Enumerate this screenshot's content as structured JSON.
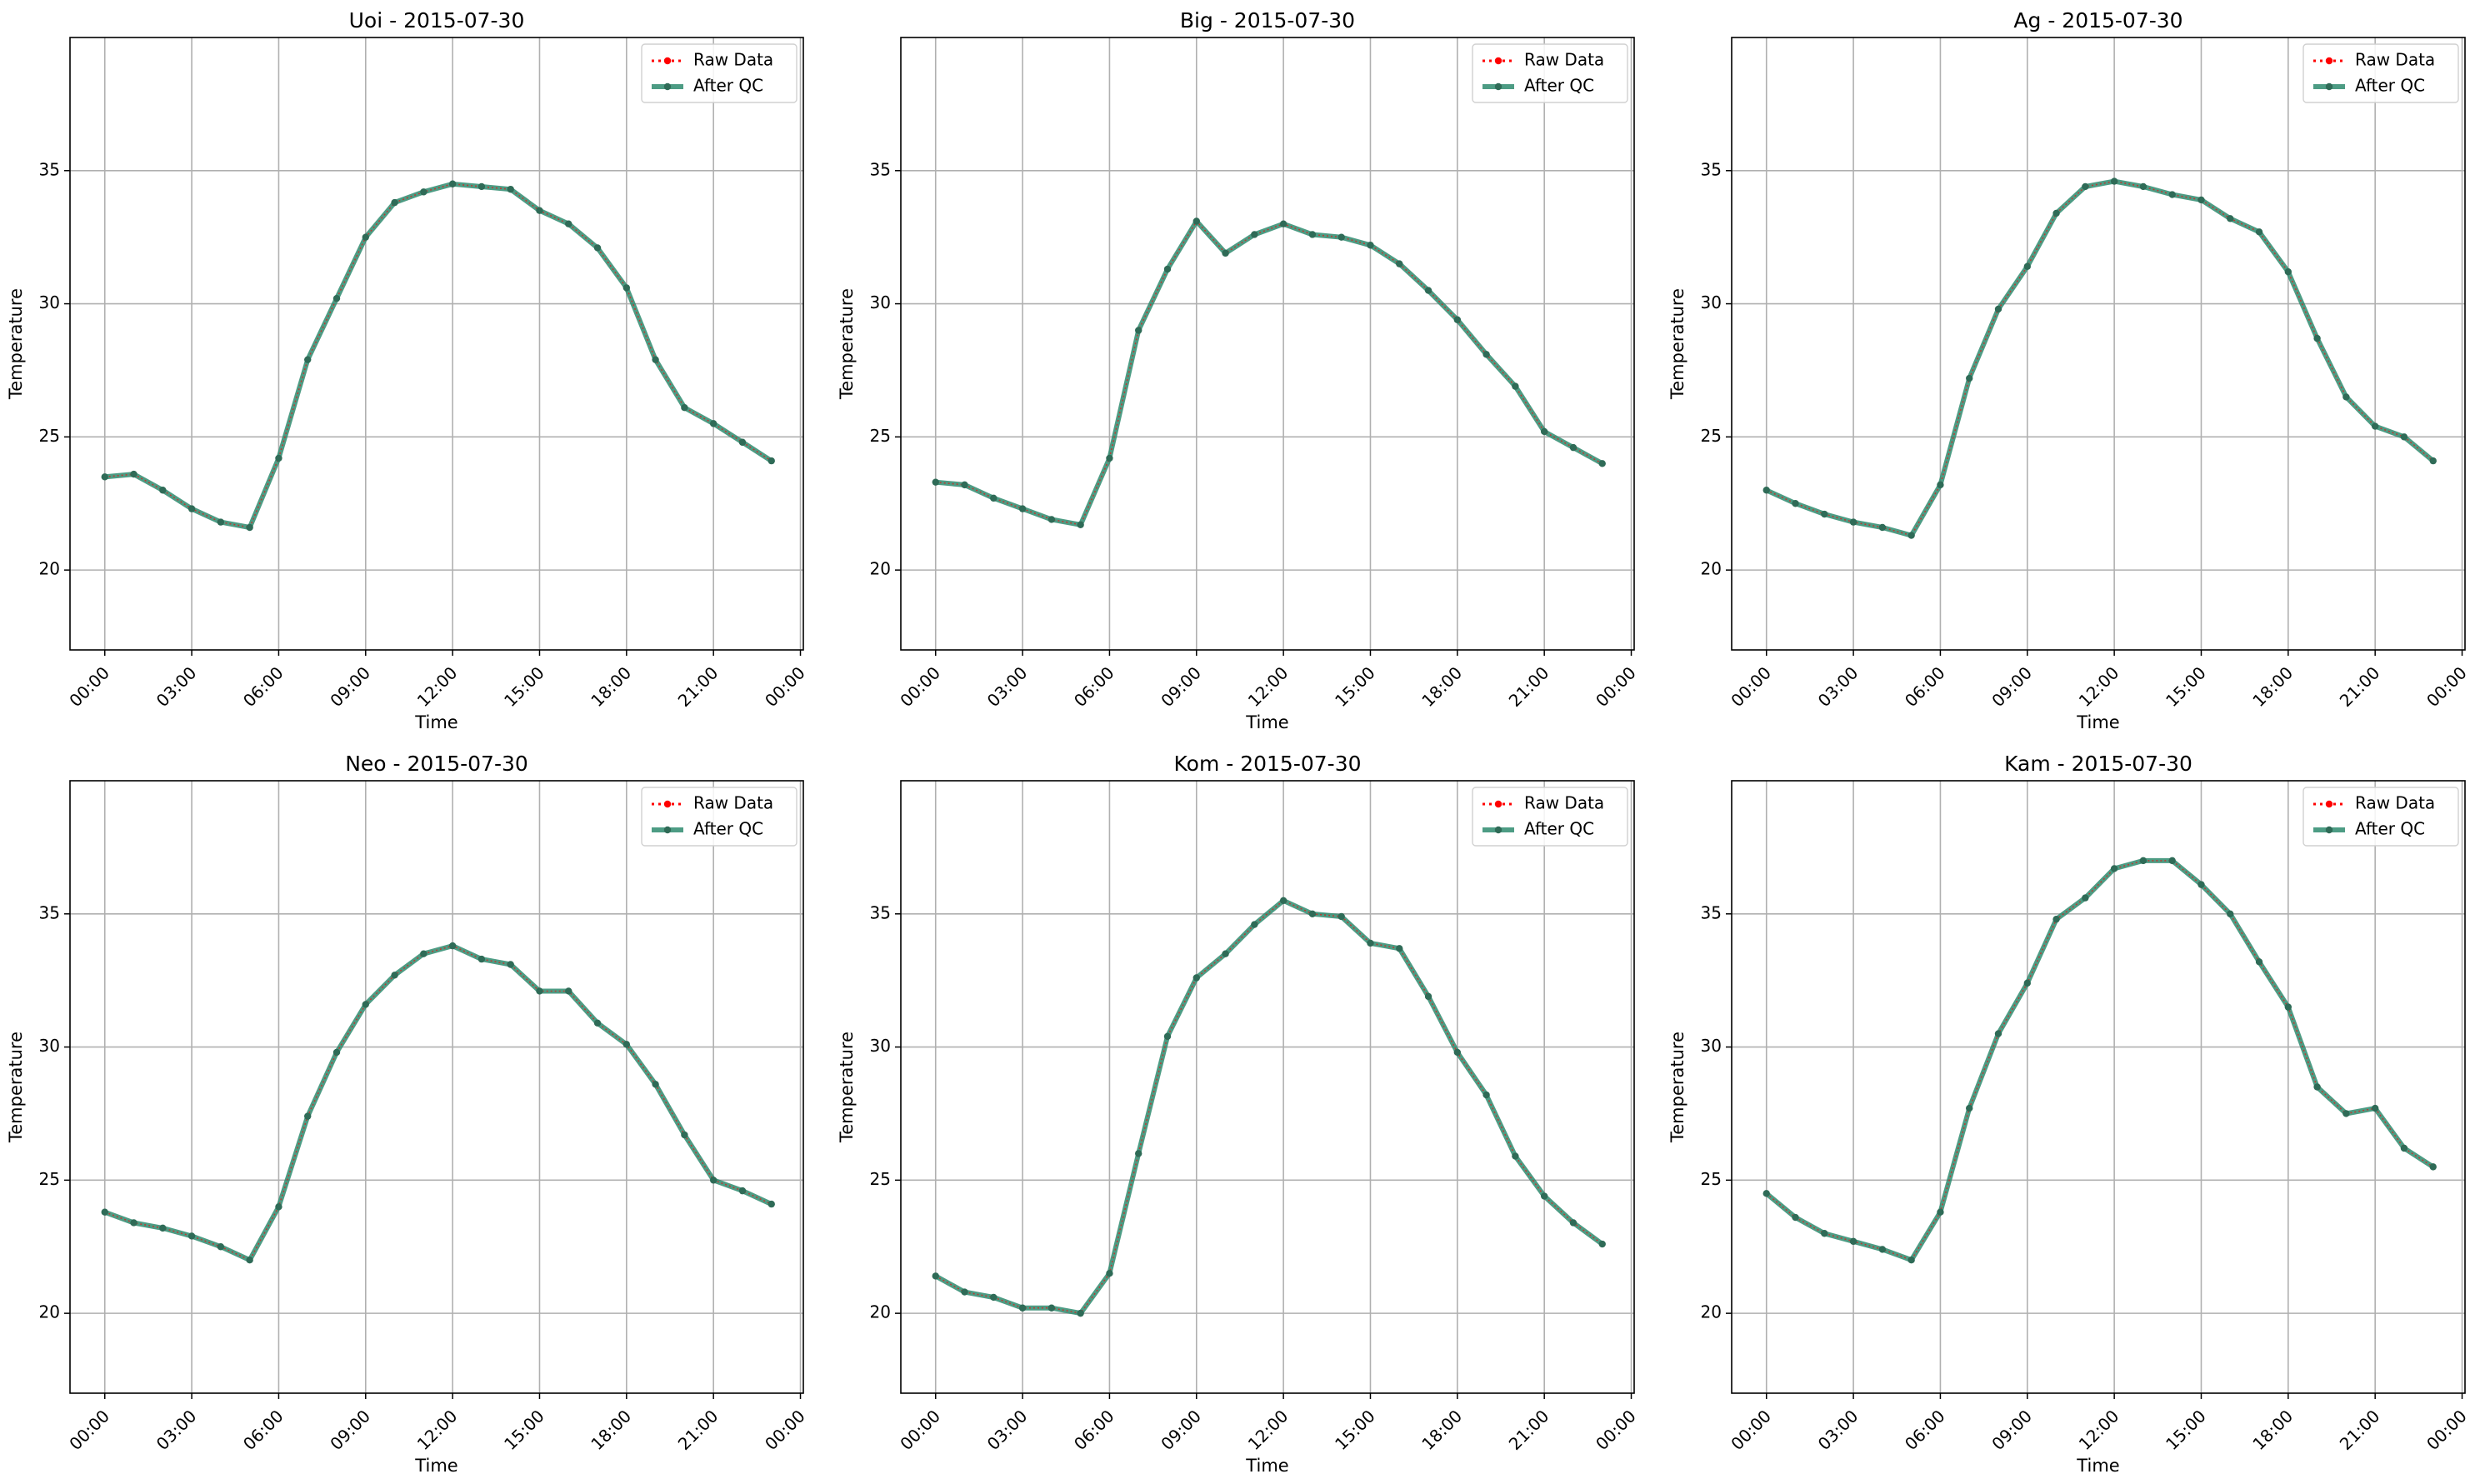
{
  "figure": {
    "background": "#ffffff",
    "raw_color": "#ff0000",
    "qc_color": "#2e8b6f",
    "marker_color": "#2f6b57",
    "grid_color": "#b0b0b0"
  },
  "chart_data": [
    {
      "type": "line",
      "title": "Uoi - 2015-07-30",
      "xlabel": "Time",
      "ylabel": "Temperature",
      "legend": [
        "Raw Data",
        "After QC"
      ],
      "legend_position": "top-right",
      "grid": true,
      "ylim": [
        17,
        40
      ],
      "xlim_hours": [
        -1.2,
        24.1
      ],
      "xticks": [
        "00:00",
        "03:00",
        "06:00",
        "09:00",
        "12:00",
        "15:00",
        "18:00",
        "21:00",
        "00:00"
      ],
      "yticks": [
        20,
        25,
        30,
        35
      ],
      "x_hours": [
        0,
        1,
        2,
        3,
        4,
        5,
        6,
        7,
        8,
        9,
        10,
        11,
        12,
        13,
        14,
        15,
        16,
        17,
        18,
        19,
        20,
        21,
        22,
        23
      ],
      "series": [
        {
          "name": "Raw Data",
          "values": [
            23.5,
            23.6,
            23.0,
            22.3,
            21.8,
            21.6,
            24.2,
            27.9,
            30.2,
            32.5,
            33.8,
            34.2,
            34.5,
            34.4,
            34.3,
            33.5,
            33.0,
            32.1,
            30.6,
            27.9,
            26.1,
            25.5,
            24.8,
            24.1
          ]
        },
        {
          "name": "After QC",
          "values": [
            23.5,
            23.6,
            23.0,
            22.3,
            21.8,
            21.6,
            24.2,
            27.9,
            30.2,
            32.5,
            33.8,
            34.2,
            34.5,
            34.4,
            34.3,
            33.5,
            33.0,
            32.1,
            30.6,
            27.9,
            26.1,
            25.5,
            24.8,
            24.1
          ]
        }
      ]
    },
    {
      "type": "line",
      "title": "Big - 2015-07-30",
      "xlabel": "Time",
      "ylabel": "Temperature",
      "legend": [
        "Raw Data",
        "After QC"
      ],
      "legend_position": "top-right",
      "grid": true,
      "ylim": [
        17,
        40
      ],
      "xlim_hours": [
        -1.2,
        24.1
      ],
      "xticks": [
        "00:00",
        "03:00",
        "06:00",
        "09:00",
        "12:00",
        "15:00",
        "18:00",
        "21:00",
        "00:00"
      ],
      "yticks": [
        20,
        25,
        30,
        35
      ],
      "x_hours": [
        0,
        1,
        2,
        3,
        4,
        5,
        6,
        7,
        8,
        9,
        10,
        11,
        12,
        13,
        14,
        15,
        16,
        17,
        18,
        19,
        20,
        21,
        22,
        23
      ],
      "series": [
        {
          "name": "Raw Data",
          "values": [
            23.3,
            23.2,
            22.7,
            22.3,
            21.9,
            21.7,
            24.2,
            29.0,
            31.3,
            33.1,
            31.9,
            32.6,
            33.0,
            32.6,
            32.5,
            32.2,
            31.5,
            30.5,
            29.4,
            28.1,
            26.9,
            25.2,
            24.6,
            24.0
          ]
        },
        {
          "name": "After QC",
          "values": [
            23.3,
            23.2,
            22.7,
            22.3,
            21.9,
            21.7,
            24.2,
            29.0,
            31.3,
            33.1,
            31.9,
            32.6,
            33.0,
            32.6,
            32.5,
            32.2,
            31.5,
            30.5,
            29.4,
            28.1,
            26.9,
            25.2,
            24.6,
            24.0
          ]
        }
      ]
    },
    {
      "type": "line",
      "title": "Ag - 2015-07-30",
      "xlabel": "Time",
      "ylabel": "Temperature",
      "legend": [
        "Raw Data",
        "After QC"
      ],
      "legend_position": "top-right",
      "grid": true,
      "ylim": [
        17,
        40
      ],
      "xlim_hours": [
        -1.2,
        24.1
      ],
      "xticks": [
        "00:00",
        "03:00",
        "06:00",
        "09:00",
        "12:00",
        "15:00",
        "18:00",
        "21:00",
        "00:00"
      ],
      "yticks": [
        20,
        25,
        30,
        35
      ],
      "x_hours": [
        0,
        1,
        2,
        3,
        4,
        5,
        6,
        7,
        8,
        9,
        10,
        11,
        12,
        13,
        14,
        15,
        16,
        17,
        18,
        19,
        20,
        21,
        22,
        23
      ],
      "series": [
        {
          "name": "Raw Data",
          "values": [
            23.0,
            22.5,
            22.1,
            21.8,
            21.6,
            21.3,
            23.2,
            27.2,
            29.8,
            31.4,
            33.4,
            34.4,
            34.6,
            34.4,
            34.1,
            33.9,
            33.2,
            32.7,
            31.2,
            28.7,
            26.5,
            25.4,
            25.0,
            24.1
          ]
        },
        {
          "name": "After QC",
          "values": [
            23.0,
            22.5,
            22.1,
            21.8,
            21.6,
            21.3,
            23.2,
            27.2,
            29.8,
            31.4,
            33.4,
            34.4,
            34.6,
            34.4,
            34.1,
            33.9,
            33.2,
            32.7,
            31.2,
            28.7,
            26.5,
            25.4,
            25.0,
            24.1
          ]
        }
      ]
    },
    {
      "type": "line",
      "title": "Neo - 2015-07-30",
      "xlabel": "Time",
      "ylabel": "Temperature",
      "legend": [
        "Raw Data",
        "After QC"
      ],
      "legend_position": "top-right",
      "grid": true,
      "ylim": [
        17,
        40
      ],
      "xlim_hours": [
        -1.2,
        24.1
      ],
      "xticks": [
        "00:00",
        "03:00",
        "06:00",
        "09:00",
        "12:00",
        "15:00",
        "18:00",
        "21:00",
        "00:00"
      ],
      "yticks": [
        20,
        25,
        30,
        35
      ],
      "x_hours": [
        0,
        1,
        2,
        3,
        4,
        5,
        6,
        7,
        8,
        9,
        10,
        11,
        12,
        13,
        14,
        15,
        16,
        17,
        18,
        19,
        20,
        21,
        22,
        23
      ],
      "series": [
        {
          "name": "Raw Data",
          "values": [
            23.8,
            23.4,
            23.2,
            22.9,
            22.5,
            22.0,
            24.0,
            27.4,
            29.8,
            31.6,
            32.7,
            33.5,
            33.8,
            33.3,
            33.1,
            32.1,
            32.1,
            30.9,
            30.1,
            28.6,
            26.7,
            25.0,
            24.6,
            24.1
          ]
        },
        {
          "name": "After QC",
          "values": [
            23.8,
            23.4,
            23.2,
            22.9,
            22.5,
            22.0,
            24.0,
            27.4,
            29.8,
            31.6,
            32.7,
            33.5,
            33.8,
            33.3,
            33.1,
            32.1,
            32.1,
            30.9,
            30.1,
            28.6,
            26.7,
            25.0,
            24.6,
            24.1
          ]
        }
      ]
    },
    {
      "type": "line",
      "title": "Kom - 2015-07-30",
      "xlabel": "Time",
      "ylabel": "Temperature",
      "legend": [
        "Raw Data",
        "After QC"
      ],
      "legend_position": "top-right",
      "grid": true,
      "ylim": [
        17,
        40
      ],
      "xlim_hours": [
        -1.2,
        24.1
      ],
      "xticks": [
        "00:00",
        "03:00",
        "06:00",
        "09:00",
        "12:00",
        "15:00",
        "18:00",
        "21:00",
        "00:00"
      ],
      "yticks": [
        20,
        25,
        30,
        35
      ],
      "x_hours": [
        0,
        1,
        2,
        3,
        4,
        5,
        6,
        7,
        8,
        9,
        10,
        11,
        12,
        13,
        14,
        15,
        16,
        17,
        18,
        19,
        20,
        21,
        22,
        23
      ],
      "series": [
        {
          "name": "Raw Data",
          "values": [
            21.4,
            20.8,
            20.6,
            20.2,
            20.2,
            20.0,
            21.5,
            26.0,
            30.4,
            32.6,
            33.5,
            34.6,
            35.5,
            35.0,
            34.9,
            33.9,
            33.7,
            31.9,
            29.8,
            28.2,
            25.9,
            24.4,
            23.4,
            22.6
          ]
        },
        {
          "name": "After QC",
          "values": [
            21.4,
            20.8,
            20.6,
            20.2,
            20.2,
            20.0,
            21.5,
            26.0,
            30.4,
            32.6,
            33.5,
            34.6,
            35.5,
            35.0,
            34.9,
            33.9,
            33.7,
            31.9,
            29.8,
            28.2,
            25.9,
            24.4,
            23.4,
            22.6
          ]
        }
      ]
    },
    {
      "type": "line",
      "title": "Kam - 2015-07-30",
      "xlabel": "Time",
      "ylabel": "Temperature",
      "legend": [
        "Raw Data",
        "After QC"
      ],
      "legend_position": "top-right",
      "grid": true,
      "ylim": [
        17,
        40
      ],
      "xlim_hours": [
        -1.2,
        24.1
      ],
      "xticks": [
        "00:00",
        "03:00",
        "06:00",
        "09:00",
        "12:00",
        "15:00",
        "18:00",
        "21:00",
        "00:00"
      ],
      "yticks": [
        20,
        25,
        30,
        35
      ],
      "x_hours": [
        0,
        1,
        2,
        3,
        4,
        5,
        6,
        7,
        8,
        9,
        10,
        11,
        12,
        13,
        14,
        15,
        16,
        17,
        18,
        19,
        20,
        21,
        22,
        23
      ],
      "series": [
        {
          "name": "Raw Data",
          "values": [
            24.5,
            23.6,
            23.0,
            22.7,
            22.4,
            22.0,
            23.8,
            27.7,
            30.5,
            32.4,
            34.8,
            35.6,
            36.7,
            37.0,
            37.0,
            36.1,
            35.0,
            33.2,
            31.5,
            28.5,
            27.5,
            27.7,
            26.2,
            25.5
          ]
        },
        {
          "name": "After QC",
          "values": [
            24.5,
            23.6,
            23.0,
            22.7,
            22.4,
            22.0,
            23.8,
            27.7,
            30.5,
            32.4,
            34.8,
            35.6,
            36.7,
            37.0,
            37.0,
            36.1,
            35.0,
            33.2,
            31.5,
            28.5,
            27.5,
            27.7,
            26.2,
            25.5
          ]
        }
      ]
    }
  ]
}
